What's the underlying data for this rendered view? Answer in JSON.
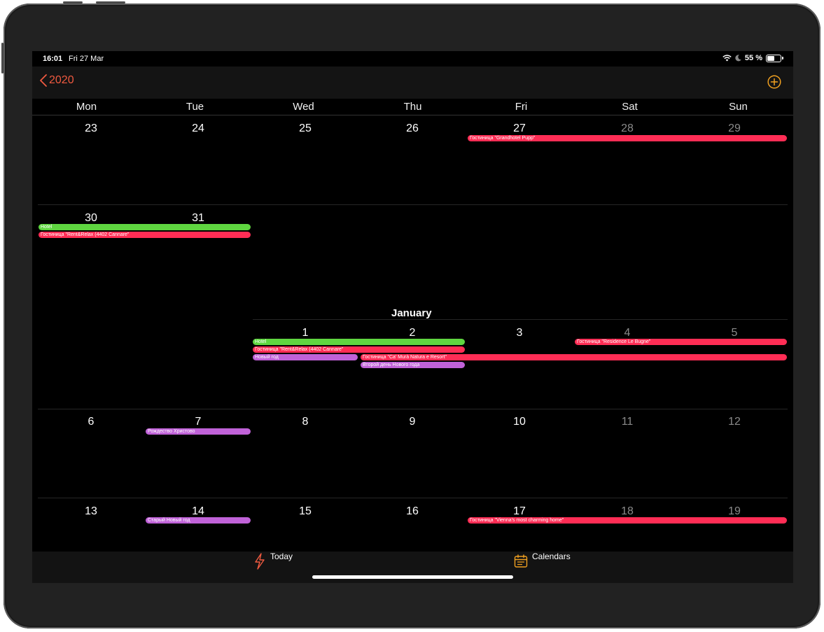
{
  "status_bar": {
    "time": "16:01",
    "date": "Fri 27 Mar",
    "battery_text": "55 %",
    "battery_level": 0.55
  },
  "nav": {
    "back_label": "2020",
    "back_icon": "chevron-left-icon",
    "add_icon": "plus-circle-icon"
  },
  "weekdays": [
    "Mon",
    "Tue",
    "Wed",
    "Thu",
    "Fri",
    "Sat",
    "Sun"
  ],
  "weeks": [
    {
      "days": [
        "23",
        "24",
        "25",
        "26",
        "27",
        "28",
        "29"
      ]
    },
    {
      "days": [
        "30",
        "31",
        "",
        "",
        "",
        "",
        ""
      ]
    },
    {
      "month_label": "January",
      "days": [
        "",
        "",
        "1",
        "2",
        "3",
        "4",
        "5"
      ]
    },
    {
      "days": [
        "6",
        "7",
        "8",
        "9",
        "10",
        "11",
        "12"
      ]
    },
    {
      "days": [
        "13",
        "14",
        "15",
        "16",
        "17",
        "18",
        "19"
      ]
    }
  ],
  "events": {
    "grandhotel": "Гостиница \"Grandhotel Pupp\"",
    "hotel_dec": "Hotel",
    "rentrelax_dec": "Гостиница \"Rent&Relax (4402 Cannare\"",
    "hotel_jan": "Hotel",
    "rentrelax_jan": "Гостиница \"Rent&Relax (4402 Cannare\"",
    "new_year": "Новый год",
    "ca_mura": "Гостиница \"Ca' Murà Natura e Resort\"",
    "second_day": "Второй день Нового года",
    "residence": "Гостиница \"Residence Le Bugne\"",
    "christmas": "Рождество Христово",
    "old_new_year": "Старый Новый год",
    "vienna": "Гостиница \"Vienna's most charming home\""
  },
  "tab_bar": {
    "today_label": "Today",
    "today_icon": "lightning-icon",
    "calendars_label": "Calendars",
    "calendars_icon": "calendar-icon"
  },
  "colors": {
    "accent": "#f05a40",
    "event_red": "#ff2d55",
    "event_green": "#5fd640",
    "event_purple": "#c062d8",
    "weekend_text": "#8a8a8a"
  }
}
